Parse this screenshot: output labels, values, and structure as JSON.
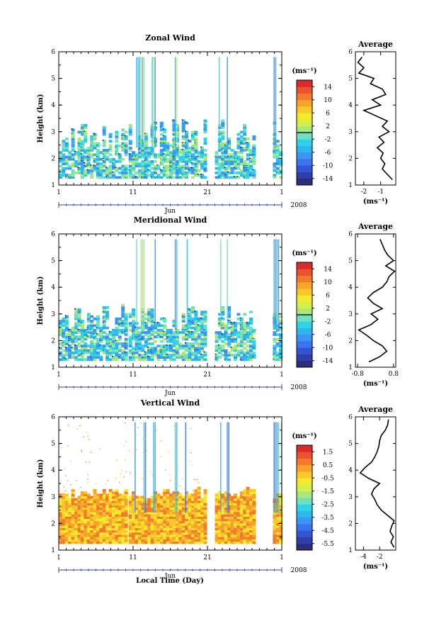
{
  "figure": {
    "xlabel": "Local Time (Day)",
    "month_label": "Jun",
    "year_label": "2008",
    "ylabel": "Height (km)",
    "avg_title": "Average",
    "unit": "(ms⁻¹)"
  },
  "chart_data": [
    {
      "type": "heatmap",
      "title": "Zonal Wind",
      "ylabel": "Height (km)",
      "xlabel": "Jun",
      "x_ticks": [
        "1",
        "11",
        "21",
        "1"
      ],
      "y_ticks": [
        "1",
        "2",
        "3",
        "4",
        "5",
        "6"
      ],
      "xlim": [
        1,
        31
      ],
      "ylim": [
        1,
        6
      ],
      "colorbar": {
        "unit": "(ms⁻¹)",
        "tick_labels": [
          "14",
          "10",
          "6",
          "2",
          "-2",
          "-6",
          "-10",
          "-14"
        ],
        "tick_values": [
          14,
          10,
          6,
          2,
          -2,
          -6,
          -10,
          -14
        ],
        "range": [
          -16,
          16
        ],
        "zero_line": 0
      },
      "average": {
        "title": "Average",
        "xlabel": "(ms⁻¹)",
        "x_ticks": [
          "-2",
          "-1"
        ],
        "x_tick_values": [
          -2,
          -1
        ],
        "xlim": [
          -2.5,
          -0.1
        ],
        "heights": [
          1.2,
          1.4,
          1.6,
          1.8,
          2.0,
          2.2,
          2.4,
          2.6,
          2.8,
          3.0,
          3.2,
          3.4,
          3.6,
          3.8,
          4.0,
          4.2,
          4.4,
          4.6,
          4.8,
          5.0,
          5.2,
          5.4,
          5.6,
          5.8
        ],
        "values": [
          -0.3,
          -0.6,
          -0.9,
          -0.75,
          -1.0,
          -0.85,
          -1.2,
          -0.8,
          -1.1,
          -0.5,
          -0.9,
          -0.6,
          -1.3,
          -2.0,
          -1.0,
          -1.5,
          -0.7,
          -0.9,
          -1.6,
          -1.4,
          -2.3,
          -2.0,
          -2.35,
          -2.1
        ]
      }
    },
    {
      "type": "heatmap",
      "title": "Meridional Wind",
      "ylabel": "Height (km)",
      "xlabel": "Jun",
      "x_ticks": [
        "1",
        "11",
        "21",
        "1"
      ],
      "y_ticks": [
        "1",
        "2",
        "3",
        "4",
        "5",
        "6"
      ],
      "xlim": [
        1,
        31
      ],
      "ylim": [
        1,
        6
      ],
      "colorbar": {
        "unit": "(ms⁻¹)",
        "tick_labels": [
          "14",
          "10",
          "6",
          "2",
          "-2",
          "-6",
          "-10",
          "-14"
        ],
        "tick_values": [
          14,
          10,
          6,
          2,
          -2,
          -6,
          -10,
          -14
        ],
        "range": [
          -16,
          16
        ],
        "zero_line": 0
      },
      "average": {
        "title": "Average",
        "xlabel": "(ms⁻¹)",
        "x_ticks": [
          "-0.8",
          "0.8"
        ],
        "x_tick_values": [
          -0.8,
          0.8
        ],
        "xlim": [
          -0.9,
          0.9
        ],
        "heights": [
          1.2,
          1.4,
          1.6,
          1.8,
          2.0,
          2.2,
          2.4,
          2.6,
          2.8,
          3.0,
          3.2,
          3.4,
          3.6,
          3.8,
          4.0,
          4.2,
          4.4,
          4.6,
          4.8,
          5.0,
          5.2,
          5.4,
          5.6,
          5.8
        ],
        "values": [
          -0.3,
          0.2,
          0.5,
          0.3,
          -0.1,
          -0.4,
          -0.75,
          -0.2,
          0.1,
          -0.2,
          0.3,
          -0.1,
          -0.35,
          -0.1,
          0.3,
          0.5,
          0.6,
          0.85,
          0.45,
          0.8,
          0.55,
          0.4,
          0.3,
          0.2
        ]
      }
    },
    {
      "type": "heatmap",
      "title": "Vertical Wind",
      "ylabel": "Height (km)",
      "xlabel": "Local Time (Day)",
      "x_ticks": [
        "1",
        "11",
        "21",
        "1"
      ],
      "y_ticks": [
        "1",
        "2",
        "3",
        "4",
        "5",
        "6"
      ],
      "xlim": [
        1,
        31
      ],
      "ylim": [
        1,
        6
      ],
      "colorbar": {
        "unit": "(ms⁻¹)",
        "tick_labels": [
          "1.5",
          "0.5",
          "-0.5",
          "-1.5",
          "-2.5",
          "-3.5",
          "-4.5",
          "-5.5"
        ],
        "tick_values": [
          1.5,
          0.5,
          -0.5,
          -1.5,
          -2.5,
          -3.5,
          -4.5,
          -5.5
        ],
        "range": [
          -6,
          2
        ],
        "zero_line": null
      },
      "average": {
        "title": "Average",
        "xlabel": "(ms⁻¹)",
        "x_ticks": [
          "-4",
          "-2"
        ],
        "x_tick_values": [
          -4,
          -2
        ],
        "xlim": [
          -5,
          0
        ],
        "heights": [
          1.1,
          1.3,
          1.5,
          1.7,
          1.9,
          2.1,
          2.3,
          2.5,
          2.7,
          2.9,
          3.1,
          3.3,
          3.5,
          3.7,
          3.9,
          4.1,
          4.3,
          4.5,
          4.7,
          4.9,
          5.1,
          5.3,
          5.5,
          5.7,
          5.9
        ],
        "values": [
          -0.2,
          -0.6,
          -0.3,
          -0.7,
          -0.5,
          -0.2,
          -1.0,
          -1.8,
          -2.3,
          -2.6,
          -3.0,
          -2.7,
          -2.0,
          -3.4,
          -4.4,
          -3.8,
          -3.0,
          -2.6,
          -2.3,
          -2.1,
          -2.0,
          -1.8,
          -1.3,
          -1.0,
          -0.9
        ]
      }
    }
  ]
}
